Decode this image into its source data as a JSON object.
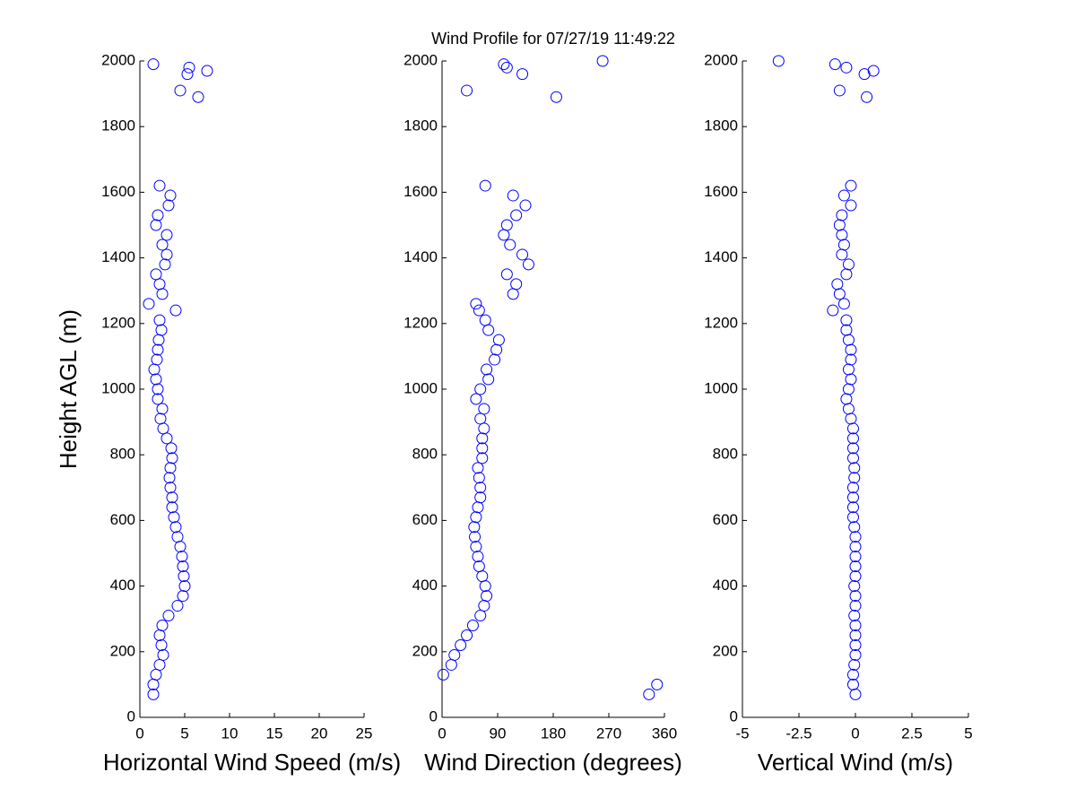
{
  "title": "Wind Profile for  07/27/19 11:49:22",
  "chart_data": [
    {
      "type": "scatter",
      "x_label": "Horizontal Wind Speed (m/s)",
      "y_label": "Height AGL (m)",
      "color": "#0000ff",
      "x": [
        1.5,
        1.5,
        1.8,
        2.2,
        2.6,
        2.4,
        2.2,
        2.5,
        3.2,
        4.2,
        4.8,
        5.0,
        4.9,
        4.8,
        4.7,
        4.5,
        4.2,
        4.0,
        3.8,
        3.6,
        3.6,
        3.4,
        3.3,
        3.4,
        3.6,
        3.5,
        3.0,
        2.6,
        2.3,
        2.5,
        2.0,
        2.0,
        1.8,
        1.6,
        1.9,
        2.0,
        2.1,
        2.4,
        2.2,
        4.0,
        1.0,
        2.5,
        2.2,
        1.8,
        2.8,
        3.0,
        2.5,
        3.0,
        1.8,
        2.0,
        3.2,
        3.4,
        2.2,
        1.5,
        5.5,
        7.5,
        5.3,
        4.5,
        6.5
      ],
      "y": [
        70,
        100,
        130,
        160,
        190,
        220,
        250,
        280,
        310,
        340,
        370,
        400,
        430,
        460,
        490,
        520,
        550,
        580,
        610,
        640,
        670,
        700,
        730,
        760,
        790,
        820,
        850,
        880,
        910,
        940,
        970,
        1000,
        1030,
        1060,
        1090,
        1120,
        1150,
        1180,
        1210,
        1240,
        1260,
        1290,
        1320,
        1350,
        1380,
        1410,
        1440,
        1470,
        1500,
        1530,
        1560,
        1590,
        1620,
        1990,
        1980,
        1970,
        1960,
        1910,
        1890
      ],
      "xlim": [
        0,
        25
      ],
      "ylim": [
        0,
        2000
      ],
      "xticks": [
        0,
        5,
        10,
        15,
        20,
        25
      ],
      "yticks": [
        0,
        200,
        400,
        600,
        800,
        1000,
        1200,
        1400,
        1600,
        1800,
        2000
      ]
    },
    {
      "type": "scatter",
      "x_label": "Wind Direction (degrees)",
      "color": "#0000ff",
      "x": [
        335,
        348,
        2,
        15,
        20,
        30,
        40,
        50,
        62,
        68,
        72,
        70,
        65,
        60,
        58,
        55,
        53,
        52,
        55,
        58,
        62,
        62,
        60,
        58,
        65,
        65,
        65,
        68,
        62,
        68,
        55,
        62,
        75,
        72,
        85,
        88,
        92,
        75,
        70,
        60,
        55,
        115,
        120,
        105,
        140,
        130,
        110,
        100,
        105,
        120,
        135,
        115,
        70,
        100,
        105,
        260,
        130,
        40,
        185
      ],
      "y": [
        70,
        100,
        130,
        160,
        190,
        220,
        250,
        280,
        310,
        340,
        370,
        400,
        430,
        460,
        490,
        520,
        550,
        580,
        610,
        640,
        670,
        700,
        730,
        760,
        790,
        820,
        850,
        880,
        910,
        940,
        970,
        1000,
        1030,
        1060,
        1090,
        1120,
        1150,
        1180,
        1210,
        1240,
        1260,
        1290,
        1320,
        1350,
        1380,
        1410,
        1440,
        1470,
        1500,
        1530,
        1560,
        1590,
        1620,
        1990,
        1980,
        2000,
        1960,
        1910,
        1890
      ],
      "xlim": [
        0,
        360
      ],
      "ylim": [
        0,
        2000
      ],
      "xticks": [
        0,
        90,
        180,
        270,
        360
      ],
      "yticks": [
        0,
        200,
        400,
        600,
        800,
        1000,
        1200,
        1400,
        1600,
        1800,
        2000
      ]
    },
    {
      "type": "scatter",
      "x_label": "Vertical Wind (m/s)",
      "color": "#0000ff",
      "x": [
        0,
        -0.1,
        -0.1,
        -0.05,
        0,
        0,
        0,
        0,
        -0.05,
        0,
        0,
        -0.05,
        0,
        0,
        0,
        0,
        0,
        -0.05,
        -0.1,
        -0.1,
        -0.1,
        -0.1,
        -0.05,
        -0.05,
        -0.1,
        -0.1,
        -0.1,
        -0.1,
        -0.2,
        -0.3,
        -0.4,
        -0.3,
        -0.2,
        -0.3,
        -0.2,
        -0.2,
        -0.3,
        -0.4,
        -0.4,
        -1.0,
        -0.5,
        -0.7,
        -0.8,
        -0.4,
        -0.3,
        -0.6,
        -0.5,
        -0.6,
        -0.7,
        -0.6,
        -0.2,
        -0.5,
        -0.2,
        -0.9,
        -0.4,
        0.8,
        0.4,
        -0.7,
        0.5,
        -3.4
      ],
      "y": [
        70,
        100,
        130,
        160,
        190,
        220,
        250,
        280,
        310,
        340,
        370,
        400,
        430,
        460,
        490,
        520,
        550,
        580,
        610,
        640,
        670,
        700,
        730,
        760,
        790,
        820,
        850,
        880,
        910,
        940,
        970,
        1000,
        1030,
        1060,
        1090,
        1120,
        1150,
        1180,
        1210,
        1240,
        1260,
        1290,
        1320,
        1350,
        1380,
        1410,
        1440,
        1470,
        1500,
        1530,
        1560,
        1590,
        1620,
        1990,
        1980,
        1970,
        1960,
        1910,
        1890,
        2000
      ],
      "xlim": [
        -5,
        5
      ],
      "ylim": [
        0,
        2000
      ],
      "xticks": [
        -5,
        -2.5,
        0,
        2.5,
        5
      ],
      "yticks": [
        0,
        200,
        400,
        600,
        800,
        1000,
        1200,
        1400,
        1600,
        1800,
        2000
      ]
    }
  ]
}
